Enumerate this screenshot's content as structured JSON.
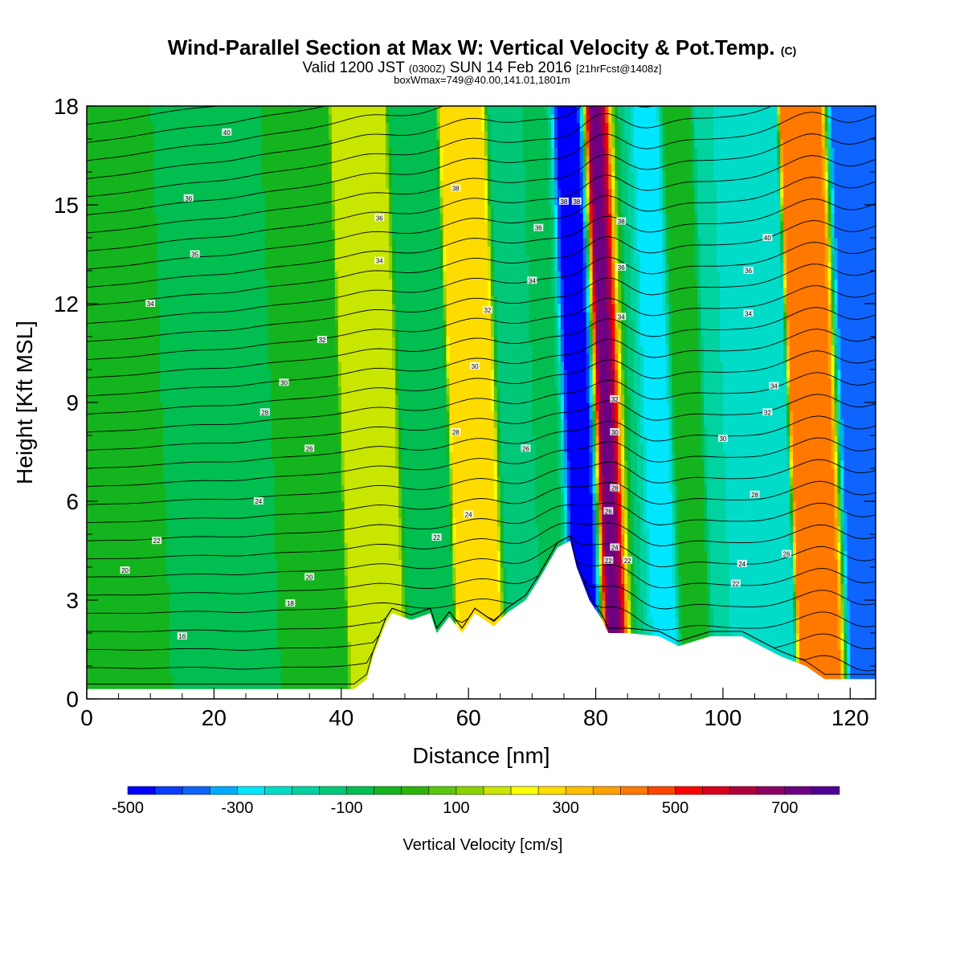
{
  "title": {
    "main": "Wind-Parallel Section at Max W: Vertical Velocity & Pot.Temp.",
    "main_suffix": "(C)",
    "valid_prefix": "Valid 1200 JST",
    "valid_utc": "(0300Z)",
    "valid_date": "SUN 14 Feb 2016",
    "forecast": "[21hrFcst@1408z]",
    "box": "boxWmax=749@40.00,141.01,1801m"
  },
  "chart_data": {
    "type": "heatmap",
    "xlabel": "Distance [nm]",
    "ylabel": "Height [Kft MSL]",
    "xlim": [
      0,
      124
    ],
    "ylim": [
      0,
      18
    ],
    "x_ticks": [
      0,
      20,
      40,
      60,
      80,
      100,
      120
    ],
    "y_ticks": [
      0,
      3,
      6,
      9,
      12,
      15,
      18
    ],
    "colorbar": {
      "label": "Vertical Velocity [cm/s]",
      "tick_labels": [
        "-500",
        "-300",
        "-100",
        "100",
        "300",
        "500",
        "700"
      ],
      "range": [
        -500,
        800
      ],
      "step": 50,
      "colors": [
        "#0000ff",
        "#0a3cff",
        "#0f64ff",
        "#00aaff",
        "#00e6ff",
        "#00dcc8",
        "#00d2a0",
        "#00c878",
        "#00be50",
        "#14b41e",
        "#2db40a",
        "#5ac80a",
        "#8cd200",
        "#c8e600",
        "#ffff00",
        "#ffdc00",
        "#ffbe00",
        "#ffa000",
        "#ff7800",
        "#ff4600",
        "#ff0000",
        "#d7001e",
        "#af003c",
        "#8c0064",
        "#6e0082",
        "#500096"
      ]
    },
    "vertical_velocity_bands": [
      {
        "x": 8,
        "w": -50
      },
      {
        "x": 24,
        "w": -100
      },
      {
        "x": 35,
        "w": -30
      },
      {
        "x": 46,
        "w": 200
      },
      {
        "x": 53,
        "w": -100
      },
      {
        "x": 62,
        "w": 300
      },
      {
        "x": 68,
        "w": -150
      },
      {
        "x": 73,
        "w": -80
      },
      {
        "x": 78,
        "w": -500
      },
      {
        "x": 83,
        "w": 749
      },
      {
        "x": 86,
        "w": -150
      },
      {
        "x": 90,
        "w": -300
      },
      {
        "x": 95,
        "w": 0
      },
      {
        "x": 100,
        "w": -200
      },
      {
        "x": 106,
        "w": -250
      },
      {
        "x": 116,
        "w": 450
      },
      {
        "x": 121,
        "w": -400
      }
    ],
    "terrain": [
      {
        "x": 0,
        "h": 0.3
      },
      {
        "x": 42,
        "h": 0.3
      },
      {
        "x": 44,
        "h": 0.6
      },
      {
        "x": 45,
        "h": 1.3
      },
      {
        "x": 47,
        "h": 2.3
      },
      {
        "x": 48,
        "h": 2.6
      },
      {
        "x": 51,
        "h": 2.4
      },
      {
        "x": 54,
        "h": 2.6
      },
      {
        "x": 55,
        "h": 2.0
      },
      {
        "x": 57,
        "h": 2.5
      },
      {
        "x": 59,
        "h": 2.0
      },
      {
        "x": 61,
        "h": 2.6
      },
      {
        "x": 64,
        "h": 2.2
      },
      {
        "x": 66,
        "h": 2.6
      },
      {
        "x": 69,
        "h": 3.0
      },
      {
        "x": 71,
        "h": 3.6
      },
      {
        "x": 74,
        "h": 4.6
      },
      {
        "x": 76,
        "h": 4.8
      },
      {
        "x": 77,
        "h": 4.0
      },
      {
        "x": 79,
        "h": 3.0
      },
      {
        "x": 81,
        "h": 2.4
      },
      {
        "x": 82,
        "h": 2.0
      },
      {
        "x": 85,
        "h": 2.0
      },
      {
        "x": 90,
        "h": 1.9
      },
      {
        "x": 93,
        "h": 1.6
      },
      {
        "x": 98,
        "h": 1.9
      },
      {
        "x": 103,
        "h": 1.9
      },
      {
        "x": 109,
        "h": 1.3
      },
      {
        "x": 113,
        "h": 1.0
      },
      {
        "x": 116,
        "h": 0.6
      },
      {
        "x": 124,
        "h": 0.6
      }
    ],
    "theta_labels": [
      {
        "x": 22,
        "y": 17.2,
        "text": "40"
      },
      {
        "x": 16,
        "y": 15.2,
        "text": "36"
      },
      {
        "x": 17,
        "y": 13.5,
        "text": "35"
      },
      {
        "x": 10,
        "y": 12.0,
        "text": "34"
      },
      {
        "x": 37,
        "y": 10.9,
        "text": "32"
      },
      {
        "x": 31,
        "y": 9.6,
        "text": "30"
      },
      {
        "x": 28,
        "y": 8.7,
        "text": "28"
      },
      {
        "x": 35,
        "y": 7.6,
        "text": "26"
      },
      {
        "x": 27,
        "y": 6.0,
        "text": "24"
      },
      {
        "x": 11,
        "y": 4.8,
        "text": "22"
      },
      {
        "x": 6,
        "y": 3.9,
        "text": "20"
      },
      {
        "x": 35,
        "y": 3.7,
        "text": "20"
      },
      {
        "x": 32,
        "y": 2.9,
        "text": "18"
      },
      {
        "x": 15,
        "y": 1.9,
        "text": "16"
      },
      {
        "x": 58,
        "y": 15.5,
        "text": "38"
      },
      {
        "x": 46,
        "y": 14.6,
        "text": "36"
      },
      {
        "x": 46,
        "y": 13.3,
        "text": "34"
      },
      {
        "x": 63,
        "y": 11.8,
        "text": "32"
      },
      {
        "x": 61,
        "y": 10.1,
        "text": "30"
      },
      {
        "x": 58,
        "y": 8.1,
        "text": "28"
      },
      {
        "x": 69,
        "y": 7.6,
        "text": "26"
      },
      {
        "x": 60,
        "y": 5.6,
        "text": "24"
      },
      {
        "x": 55,
        "y": 4.9,
        "text": "22"
      },
      {
        "x": 75,
        "y": 15.1,
        "text": "38"
      },
      {
        "x": 77,
        "y": 15.1,
        "text": "38"
      },
      {
        "x": 71,
        "y": 14.3,
        "text": "36"
      },
      {
        "x": 70,
        "y": 12.7,
        "text": "34"
      },
      {
        "x": 84,
        "y": 14.5,
        "text": "38"
      },
      {
        "x": 84,
        "y": 13.1,
        "text": "36"
      },
      {
        "x": 84,
        "y": 11.6,
        "text": "34"
      },
      {
        "x": 83,
        "y": 9.1,
        "text": "32"
      },
      {
        "x": 83,
        "y": 8.1,
        "text": "30"
      },
      {
        "x": 83,
        "y": 6.4,
        "text": "28"
      },
      {
        "x": 82,
        "y": 5.7,
        "text": "26"
      },
      {
        "x": 83,
        "y": 4.6,
        "text": "24"
      },
      {
        "x": 82,
        "y": 4.2,
        "text": "22"
      },
      {
        "x": 85,
        "y": 4.2,
        "text": "22"
      },
      {
        "x": 107,
        "y": 14.0,
        "text": "40"
      },
      {
        "x": 104,
        "y": 13.0,
        "text": "36"
      },
      {
        "x": 104,
        "y": 11.7,
        "text": "34"
      },
      {
        "x": 108,
        "y": 9.5,
        "text": "34"
      },
      {
        "x": 107,
        "y": 8.7,
        "text": "32"
      },
      {
        "x": 100,
        "y": 7.9,
        "text": "30"
      },
      {
        "x": 105,
        "y": 6.2,
        "text": "28"
      },
      {
        "x": 110,
        "y": 4.4,
        "text": "26"
      },
      {
        "x": 103,
        "y": 4.1,
        "text": "24"
      },
      {
        "x": 102,
        "y": 3.5,
        "text": "22"
      }
    ]
  }
}
